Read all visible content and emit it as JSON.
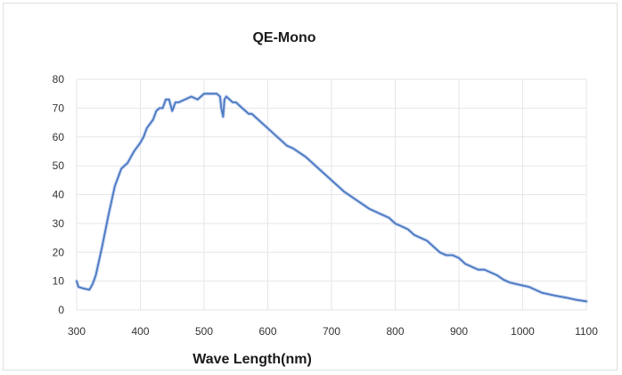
{
  "chart_data": {
    "type": "line",
    "title": "QE-Mono",
    "xlabel": "Wave Length(nm)",
    "ylabel": "",
    "xlim": [
      300,
      1100
    ],
    "ylim": [
      0,
      80
    ],
    "x_ticks": [
      300,
      400,
      500,
      600,
      700,
      800,
      900,
      1000,
      1100
    ],
    "y_ticks": [
      0,
      10,
      20,
      30,
      40,
      50,
      60,
      70,
      80
    ],
    "grid": "horizontal and vertical",
    "legend": "none",
    "colors": {
      "line": "#4a78c2",
      "grid": "#e6e6e6"
    },
    "series": [
      {
        "x": [
          300,
          303,
          310,
          320,
          325,
          330,
          340,
          350,
          360,
          370,
          380,
          390,
          400,
          405,
          410,
          420,
          425,
          430,
          435,
          440,
          445,
          450,
          455,
          460,
          470,
          480,
          490,
          500,
          510,
          520,
          525,
          527,
          530,
          532,
          535,
          540,
          545,
          550,
          560,
          565,
          570,
          575,
          580,
          590,
          600,
          610,
          620,
          630,
          640,
          660,
          680,
          700,
          720,
          740,
          760,
          780,
          790,
          800,
          810,
          820,
          830,
          840,
          850,
          860,
          870,
          880,
          890,
          900,
          910,
          920,
          930,
          940,
          950,
          960,
          970,
          980,
          990,
          1000,
          1010,
          1020,
          1030,
          1050,
          1070,
          1085,
          1100
        ],
        "y": [
          10,
          8,
          7.5,
          7,
          9,
          12,
          22,
          33,
          43,
          49,
          51,
          55,
          58,
          60,
          63,
          66,
          69,
          70,
          70,
          73,
          73,
          69,
          72,
          72,
          73,
          74,
          73,
          75,
          75,
          75,
          74,
          70,
          67,
          73,
          74,
          73,
          72,
          72,
          70,
          69,
          68,
          68,
          67,
          65,
          63,
          61,
          59,
          57,
          56,
          53,
          49,
          45,
          41,
          38,
          35,
          33,
          32,
          30,
          29,
          28,
          26,
          25,
          24,
          22,
          20,
          19,
          19,
          18,
          16,
          15,
          14,
          14,
          13,
          12,
          10.5,
          9.5,
          9,
          8.5,
          8,
          7,
          6,
          5,
          4.2,
          3.5,
          3
        ]
      }
    ]
  }
}
